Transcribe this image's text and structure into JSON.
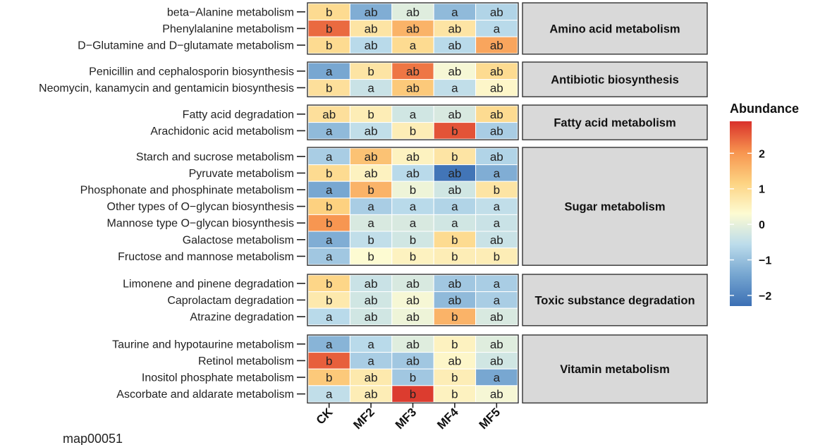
{
  "chart_data": {
    "type": "heatmap",
    "columns": [
      "CK",
      "MF2",
      "MF3",
      "MF4",
      "MF5"
    ],
    "groups": [
      {
        "name": "Amino acid metabolism",
        "rows": [
          {
            "label": "beta−Alanine metabolism",
            "values": [
              1.0,
              -1.3,
              -0.1,
              -1.1,
              -0.7
            ],
            "letters": [
              "b",
              "ab",
              "ab",
              "a",
              "ab"
            ]
          },
          {
            "label": "Phenylalanine metabolism",
            "values": [
              2.4,
              0.8,
              1.6,
              0.8,
              -0.6
            ],
            "letters": [
              "b",
              "ab",
              "ab",
              "ab",
              "a"
            ]
          },
          {
            "label": "D−Glutamine and D−glutamate metabolism",
            "values": [
              1.0,
              -0.6,
              1.0,
              -0.6,
              1.8
            ],
            "letters": [
              "b",
              "ab",
              "a",
              "ab",
              "ab"
            ]
          }
        ]
      },
      {
        "name": "Antibiotic biosynthesis",
        "rows": [
          {
            "label": "Penicillin and cephalosporin biosynthesis",
            "values": [
              -1.4,
              0.8,
              2.3,
              0.2,
              1.0
            ],
            "letters": [
              "a",
              "b",
              "ab",
              "ab",
              "ab"
            ]
          },
          {
            "label": "Neomycin, kanamycin and gentamicin biosynthesis",
            "values": [
              0.9,
              -0.4,
              1.3,
              -0.5,
              0.4
            ],
            "letters": [
              "b",
              "a",
              "ab",
              "a",
              "ab"
            ]
          }
        ]
      },
      {
        "name": "Fatty acid metabolism",
        "rows": [
          {
            "label": "Fatty acid degradation",
            "values": [
              0.9,
              0.6,
              -0.3,
              -0.2,
              1.0
            ],
            "letters": [
              "ab",
              "b",
              "a",
              "ab",
              "ab"
            ]
          },
          {
            "label": "Arachidonic acid metabolism",
            "values": [
              -1.1,
              -0.5,
              0.6,
              2.6,
              -0.8
            ],
            "letters": [
              "a",
              "ab",
              "b",
              "b",
              "ab"
            ]
          }
        ]
      },
      {
        "name": "Sugar metabolism",
        "rows": [
          {
            "label": "Starch and sucrose metabolism",
            "values": [
              -0.8,
              1.4,
              0.5,
              0.8,
              -0.7
            ],
            "letters": [
              "a",
              "ab",
              "ab",
              "b",
              "ab"
            ]
          },
          {
            "label": "Pyruvate metabolism",
            "values": [
              1.0,
              0.5,
              -0.6,
              -2.2,
              -1.3
            ],
            "letters": [
              "b",
              "ab",
              "ab",
              "ab",
              "a"
            ]
          },
          {
            "label": "Phosphonate and phosphinate metabolism",
            "values": [
              -1.4,
              1.6,
              0.1,
              -0.3,
              0.8
            ],
            "letters": [
              "a",
              "b",
              "b",
              "ab",
              "b"
            ]
          },
          {
            "label": "Other types of O−glycan biosynthesis",
            "values": [
              1.2,
              -0.8,
              -0.6,
              -0.7,
              -0.5
            ],
            "letters": [
              "b",
              "a",
              "a",
              "a",
              "a"
            ]
          },
          {
            "label": "Mannose type O−glycan biosynthesis",
            "values": [
              2.0,
              -0.2,
              -0.2,
              -0.3,
              -0.4
            ],
            "letters": [
              "b",
              "a",
              "a",
              "a",
              "a"
            ]
          },
          {
            "label": "Galactose metabolism",
            "values": [
              -1.3,
              -0.5,
              -0.3,
              1.0,
              -0.4
            ],
            "letters": [
              "a",
              "b",
              "b",
              "b",
              "ab"
            ]
          },
          {
            "label": "Fructose and mannose metabolism",
            "values": [
              -0.9,
              0.3,
              0.5,
              0.6,
              0.6
            ],
            "letters": [
              "a",
              "b",
              "b",
              "b",
              "b"
            ]
          }
        ]
      },
      {
        "name": "Toxic substance degradation",
        "rows": [
          {
            "label": "Limonene and pinene degradation",
            "values": [
              1.1,
              -0.4,
              -0.2,
              -0.9,
              -0.8
            ],
            "letters": [
              "b",
              "ab",
              "ab",
              "ab",
              "a"
            ]
          },
          {
            "label": "Caprolactam degradation",
            "values": [
              0.7,
              -0.3,
              0.2,
              -1.1,
              -0.8
            ],
            "letters": [
              "b",
              "ab",
              "ab",
              "ab",
              "a"
            ]
          },
          {
            "label": "Atrazine degradation",
            "values": [
              -0.6,
              -0.3,
              0.1,
              1.6,
              -0.2
            ],
            "letters": [
              "a",
              "ab",
              "ab",
              "b",
              "ab"
            ]
          }
        ]
      },
      {
        "name": "Vitamin metabolism",
        "rows": [
          {
            "label": "Taurine and hypotaurine metabolism",
            "values": [
              -1.2,
              -0.6,
              -0.1,
              0.5,
              -0.1
            ],
            "letters": [
              "a",
              "a",
              "ab",
              "b",
              "ab"
            ]
          },
          {
            "label": "Retinol metabolism",
            "values": [
              2.5,
              -0.8,
              -0.9,
              0.4,
              -0.3
            ],
            "letters": [
              "b",
              "a",
              "ab",
              "ab",
              "ab"
            ]
          },
          {
            "label": "Inositol phosphate metabolism",
            "values": [
              1.3,
              0.7,
              -0.9,
              0.6,
              -1.4
            ],
            "letters": [
              "b",
              "ab",
              "b",
              "b",
              "a"
            ]
          },
          {
            "label": "Ascorbate and aldarate metabolism",
            "values": [
              -0.5,
              0.6,
              2.8,
              0.5,
              0.2
            ],
            "letters": [
              "a",
              "ab",
              "b",
              "b",
              "ab"
            ]
          }
        ]
      }
    ],
    "legend": {
      "title": "Abundance",
      "range": [
        -2.3,
        2.9
      ],
      "ticks": [
        "2",
        "1",
        "0",
        "−1",
        "−2"
      ],
      "tick_values": [
        2,
        1,
        0,
        -1,
        -2
      ],
      "colors": [
        "#3b6fb4",
        "#75a5d0",
        "#bcdceb",
        "#fdfbd2",
        "#fdd382",
        "#f7944f",
        "#d9312b"
      ]
    }
  },
  "caption": "map00051"
}
